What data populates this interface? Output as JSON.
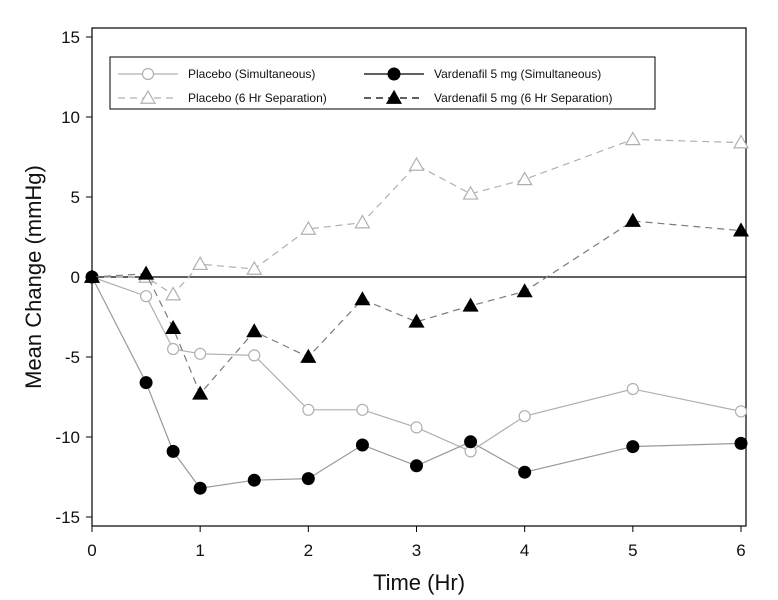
{
  "chart_data": {
    "type": "line",
    "title": "",
    "xlabel": "Time (Hr)",
    "ylabel": "Mean Change (mmHg)",
    "xlim": [
      0,
      6
    ],
    "ylim": [
      -15,
      15
    ],
    "xticks": [
      "0",
      "1",
      "2",
      "3",
      "4",
      "5",
      "6"
    ],
    "yticks": [
      "-15",
      "-10",
      "-5",
      "0",
      "5",
      "10",
      "15"
    ],
    "grid": false,
    "reference_line_y": 0,
    "legend_position": "top",
    "series": [
      {
        "name": "Placebo (Simultaneous)",
        "color": "#b0b0b0",
        "line_style": "solid",
        "marker": "open-circle",
        "x": [
          0,
          0.5,
          0.75,
          1,
          1.5,
          2,
          2.5,
          3,
          3.5,
          4,
          5,
          6
        ],
        "y": [
          0,
          -1.2,
          -4.5,
          -4.8,
          -4.9,
          -8.3,
          -8.3,
          -9.4,
          -10.9,
          -8.7,
          -7.0,
          -8.4
        ]
      },
      {
        "name": "Placebo (6 Hr Separation)",
        "color": "#b0b0b0",
        "line_style": "dashed",
        "marker": "open-triangle",
        "x": [
          0,
          0.5,
          0.75,
          1,
          1.5,
          2,
          2.5,
          3,
          3.5,
          4,
          5,
          6
        ],
        "y": [
          0,
          0,
          -1.1,
          0.8,
          0.5,
          3.0,
          3.4,
          7.0,
          5.2,
          6.1,
          8.6,
          8.4
        ]
      },
      {
        "name": "Vardenafil 5 mg (Simultaneous)",
        "color": "#000000",
        "line_style": "solid",
        "marker": "filled-circle",
        "line_color": "#9a9a9a",
        "x": [
          0,
          0.5,
          0.75,
          1,
          1.5,
          2,
          2.5,
          3,
          3.5,
          4,
          5,
          6
        ],
        "y": [
          0,
          -6.6,
          -10.9,
          -13.2,
          -12.7,
          -12.6,
          -10.5,
          -11.8,
          -10.3,
          -12.2,
          -10.6,
          -10.4
        ]
      },
      {
        "name": "Vardenafil 5 mg (6 Hr Separation)",
        "color": "#000000",
        "line_style": "dashed",
        "marker": "filled-triangle",
        "line_color": "#7a7a7a",
        "x": [
          0,
          0.5,
          0.75,
          1,
          1.5,
          2,
          2.5,
          3,
          3.5,
          4,
          5,
          6
        ],
        "y": [
          0,
          0.2,
          -3.2,
          -7.3,
          -3.4,
          -5.0,
          -1.4,
          -2.8,
          -1.8,
          -0.9,
          3.5,
          2.9
        ]
      }
    ]
  }
}
